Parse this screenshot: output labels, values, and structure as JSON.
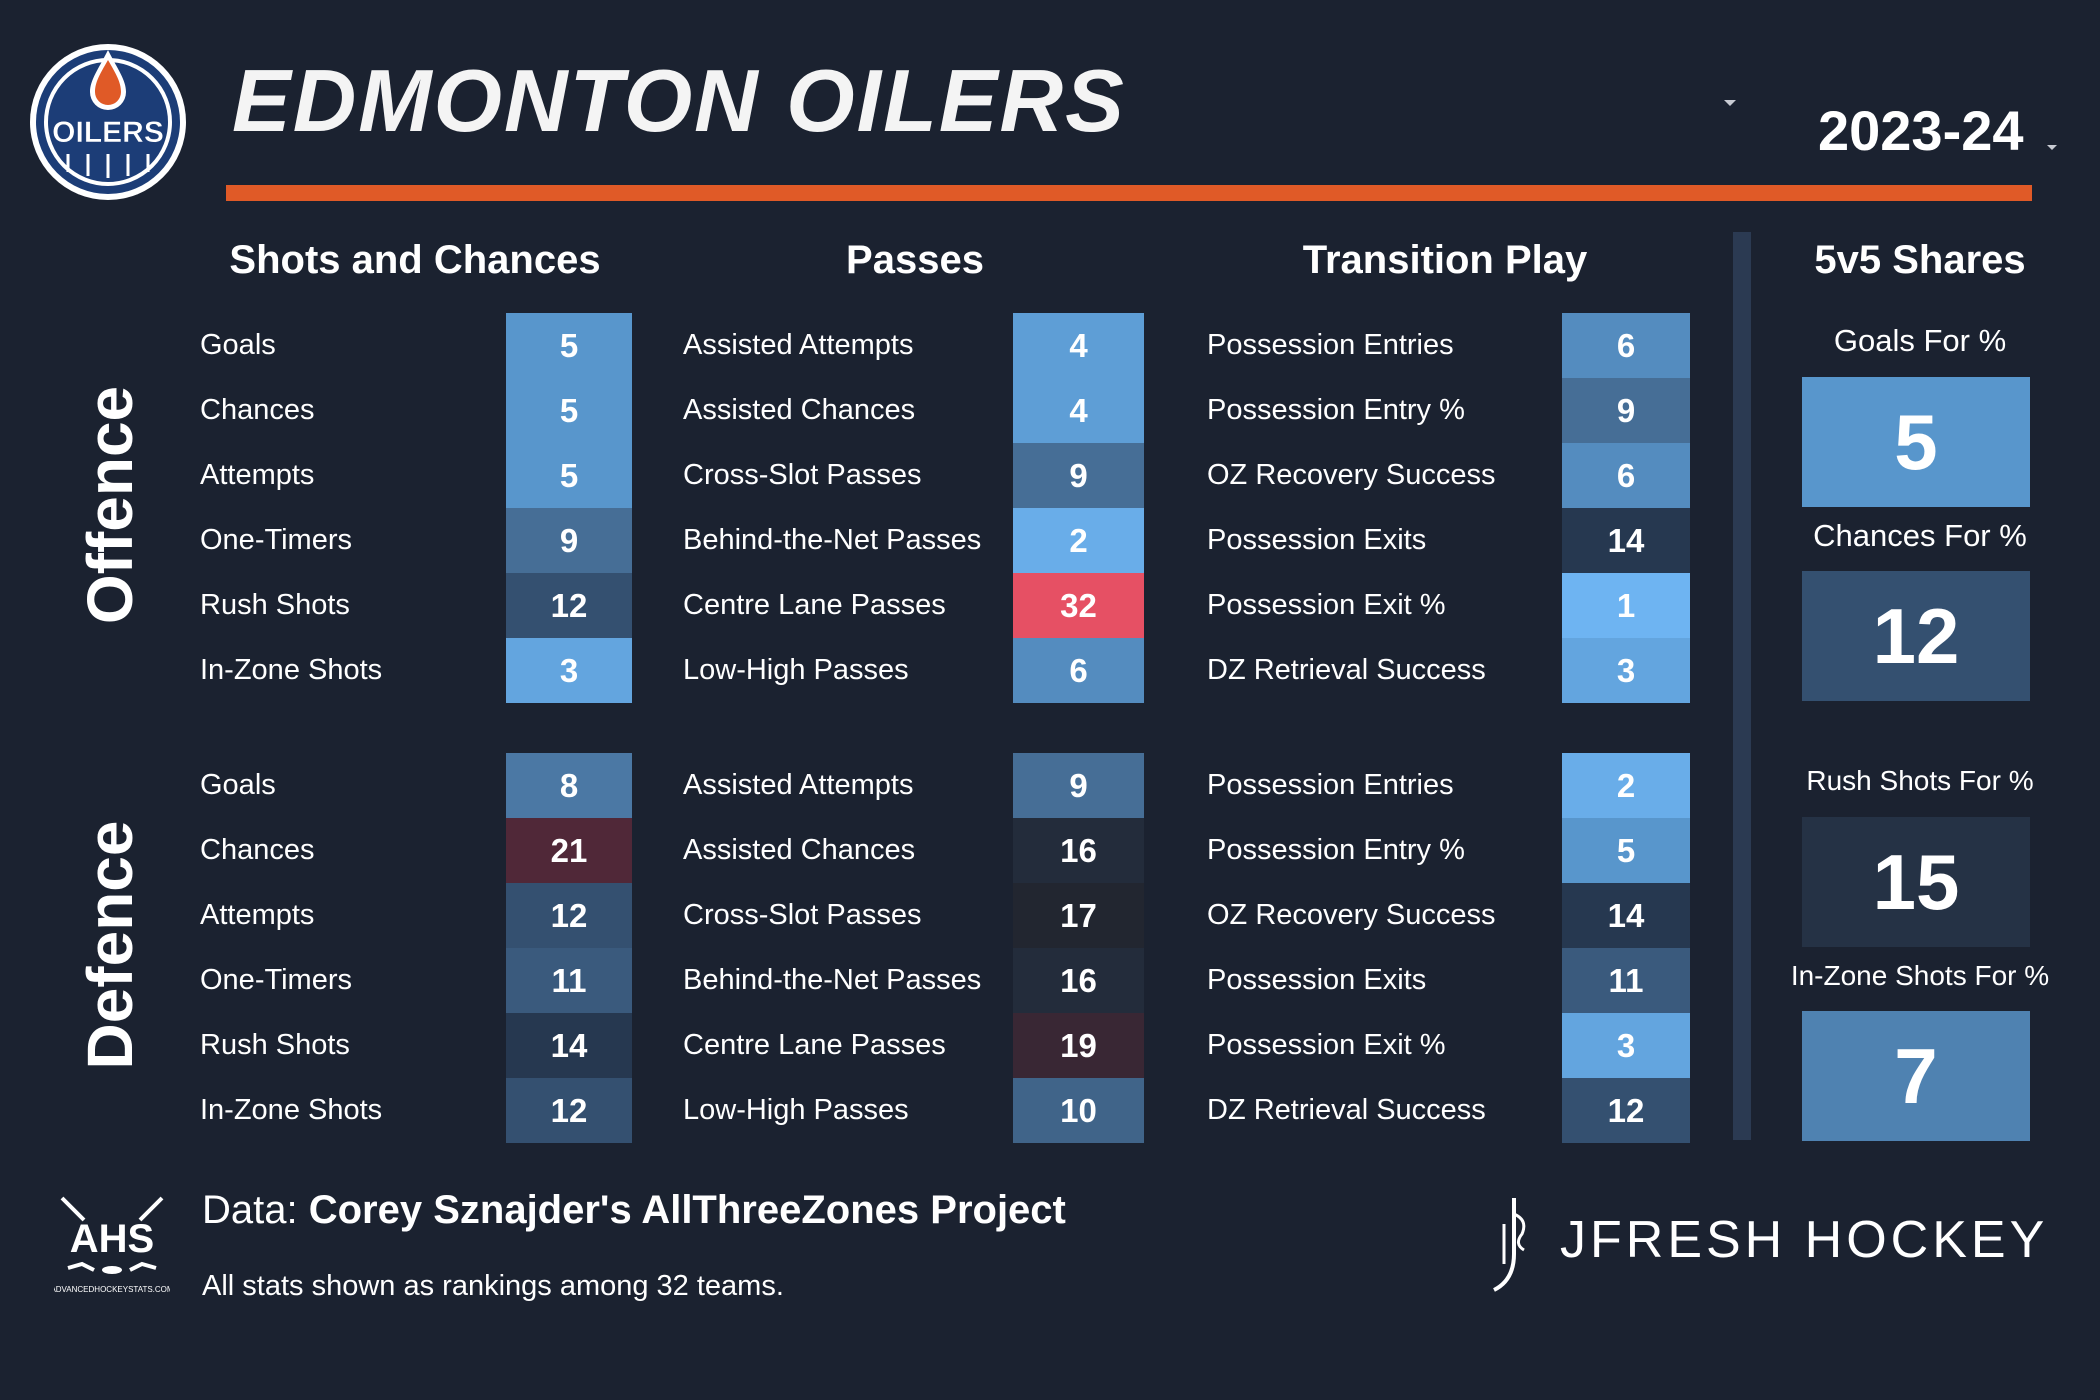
{
  "header": {
    "team": "EDMONTON OILERS",
    "logo_text": "OILERS",
    "season": "2023-24",
    "accent_color": "#e05a27"
  },
  "sections": {
    "shots": "Shots and Chances",
    "passes": "Passes",
    "transition": "Transition Play",
    "shares": "5v5 Shares"
  },
  "side_labels": {
    "offence": "Offence",
    "defence": "Defence"
  },
  "offence": {
    "shots": [
      {
        "label": "Goals",
        "rank": "5"
      },
      {
        "label": "Chances",
        "rank": "5"
      },
      {
        "label": "Attempts",
        "rank": "5"
      },
      {
        "label": "One-Timers",
        "rank": "9"
      },
      {
        "label": "Rush Shots",
        "rank": "12"
      },
      {
        "label": "In-Zone Shots",
        "rank": "3"
      }
    ],
    "passes": [
      {
        "label": "Assisted Attempts",
        "rank": "4"
      },
      {
        "label": "Assisted Chances",
        "rank": "4"
      },
      {
        "label": "Cross-Slot Passes",
        "rank": "9"
      },
      {
        "label": "Behind-the-Net Passes",
        "rank": "2"
      },
      {
        "label": "Centre Lane Passes",
        "rank": "32"
      },
      {
        "label": "Low-High Passes",
        "rank": "6"
      }
    ],
    "transition": [
      {
        "label": "Possession Entries",
        "rank": "6"
      },
      {
        "label": "Possession Entry %",
        "rank": "9"
      },
      {
        "label": "OZ Recovery Success",
        "rank": "6"
      },
      {
        "label": "Possession Exits",
        "rank": "14"
      },
      {
        "label": "Possession Exit %",
        "rank": "1"
      },
      {
        "label": "DZ Retrieval Success",
        "rank": "3"
      }
    ]
  },
  "defence": {
    "shots": [
      {
        "label": "Goals",
        "rank": "8"
      },
      {
        "label": "Chances",
        "rank": "21"
      },
      {
        "label": "Attempts",
        "rank": "12"
      },
      {
        "label": "One-Timers",
        "rank": "11"
      },
      {
        "label": "Rush Shots",
        "rank": "14"
      },
      {
        "label": "In-Zone Shots",
        "rank": "12"
      }
    ],
    "passes": [
      {
        "label": "Assisted Attempts",
        "rank": "9"
      },
      {
        "label": "Assisted Chances",
        "rank": "16"
      },
      {
        "label": "Cross-Slot Passes",
        "rank": "17"
      },
      {
        "label": "Behind-the-Net Passes",
        "rank": "16"
      },
      {
        "label": "Centre Lane Passes",
        "rank": "19"
      },
      {
        "label": "Low-High Passes",
        "rank": "10"
      }
    ],
    "transition": [
      {
        "label": "Possession Entries",
        "rank": "2"
      },
      {
        "label": "Possession Entry %",
        "rank": "5"
      },
      {
        "label": "OZ Recovery Success",
        "rank": "14"
      },
      {
        "label": "Possession Exits",
        "rank": "11"
      },
      {
        "label": "Possession Exit %",
        "rank": "3"
      },
      {
        "label": "DZ Retrieval Success",
        "rank": "12"
      }
    ]
  },
  "shares": [
    {
      "label": "Goals For %",
      "rank": "5"
    },
    {
      "label": "Chances For %",
      "rank": "12"
    },
    {
      "label": "Rush Shots For %",
      "rank": "15"
    },
    {
      "label": "In-Zone Shots For %",
      "rank": "7"
    }
  ],
  "footer": {
    "data_prefix": "Data: ",
    "data_source": "Corey Sznajder's AllThreeZones Project",
    "note": "All stats shown as rankings among 32 teams.",
    "ahs_text": "AHS",
    "ahs_url_text": "ADVANCEDHOCKEYSTATS.COM",
    "brand": "JFRESH HOCKEY"
  }
}
